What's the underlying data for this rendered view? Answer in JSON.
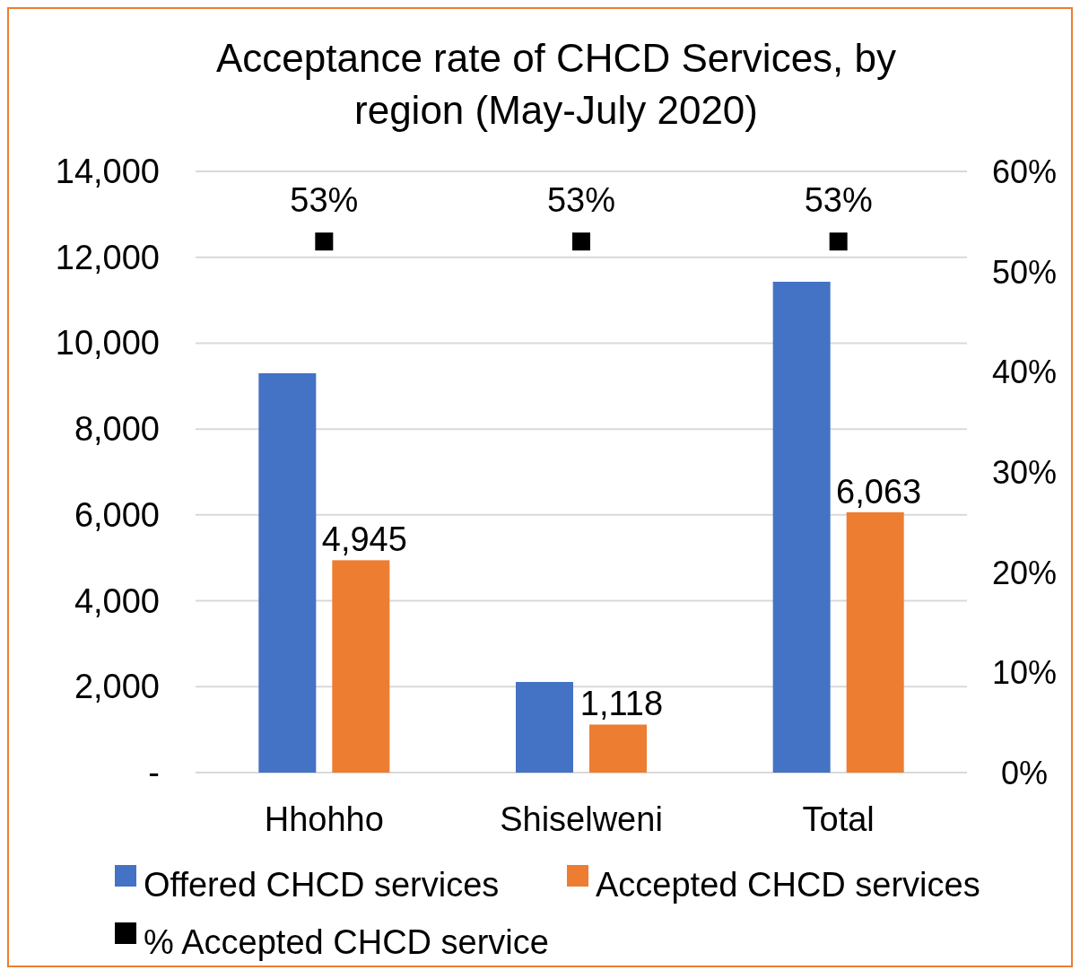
{
  "chart_data": {
    "type": "bar",
    "title": "Acceptance rate of CHCD Services, by region (May-July 2020)",
    "categories": [
      "Hhohho",
      "Shiselweni",
      "Total"
    ],
    "series": [
      {
        "name": "Offered CHCD services",
        "color": "#4472c4",
        "values": [
          9300,
          2110,
          11430
        ]
      },
      {
        "name": "Accepted CHCD services",
        "color": "#ed7d31",
        "values": [
          4945,
          1118,
          6063
        ],
        "value_labels": [
          "4,945",
          "1,118",
          "6,063"
        ]
      },
      {
        "name": "% Accepted CHCD service",
        "type": "scatter",
        "axis": "y2",
        "marker": "square",
        "color": "#000000",
        "values": [
          53,
          53,
          53
        ],
        "value_labels": [
          "53%",
          "53%",
          "53%"
        ]
      }
    ],
    "ylim": [
      0,
      14000
    ],
    "yticks": [
      {
        "value": 0,
        "label": "-"
      },
      {
        "value": 2000,
        "label": "2,000"
      },
      {
        "value": 4000,
        "label": "4,000"
      },
      {
        "value": 6000,
        "label": "6,000"
      },
      {
        "value": 8000,
        "label": "8,000"
      },
      {
        "value": 10000,
        "label": "10,000"
      },
      {
        "value": 12000,
        "label": "12,000"
      },
      {
        "value": 14000,
        "label": "14,000"
      }
    ],
    "y2lim": [
      0,
      60
    ],
    "y2ticks": [
      {
        "value": 0,
        "label": "0%"
      },
      {
        "value": 10,
        "label": "10%"
      },
      {
        "value": 20,
        "label": "20%"
      },
      {
        "value": 30,
        "label": "30%"
      },
      {
        "value": 40,
        "label": "40%"
      },
      {
        "value": 50,
        "label": "50%"
      },
      {
        "value": 60,
        "label": "60%"
      }
    ],
    "grid": "y",
    "legend": "bottom"
  }
}
